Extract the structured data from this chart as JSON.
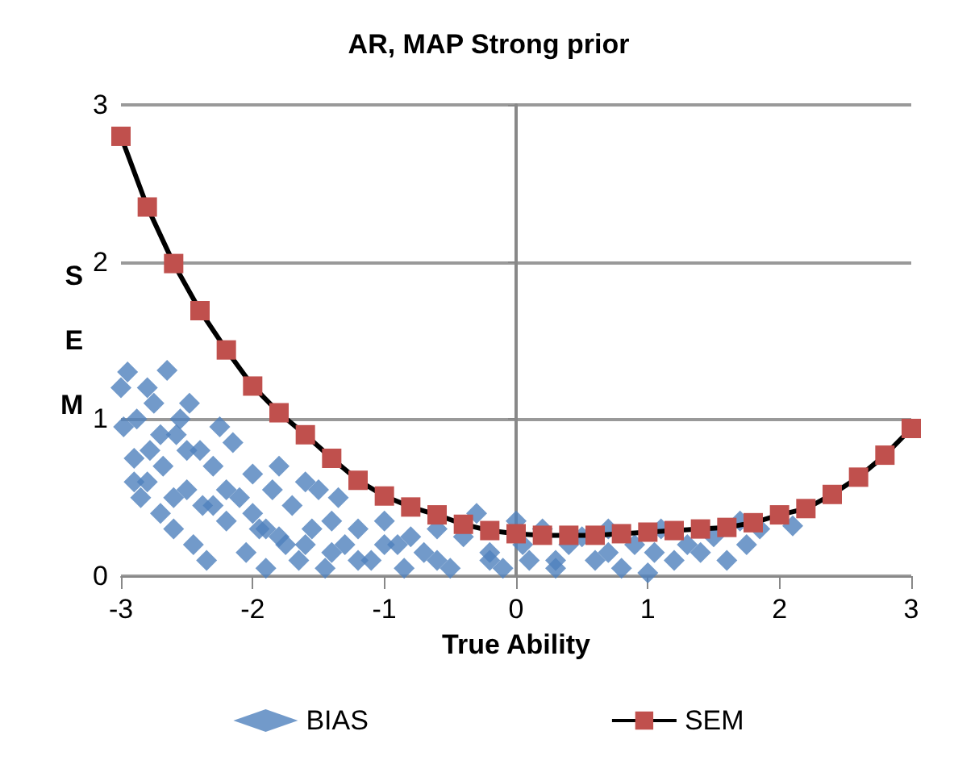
{
  "chart_data": {
    "type": "scatter",
    "title": "AR, MAP Strong prior",
    "xlabel": "True Ability",
    "ylabel": "S\nE\nM",
    "xlim": [
      -3,
      3
    ],
    "ylim": [
      0,
      3
    ],
    "xticks": [
      -3,
      -2,
      -1,
      0,
      1,
      2,
      3
    ],
    "yticks": [
      0,
      1,
      2,
      3
    ],
    "grid": "y",
    "legend": "bottom",
    "series": [
      {
        "name": "BIAS",
        "type": "scatter",
        "marker": "diamond",
        "color": "#4f81bd",
        "x": [
          -3.0,
          -2.98,
          -2.95,
          -2.9,
          -2.88,
          -2.85,
          -2.8,
          -2.78,
          -2.75,
          -2.7,
          -2.68,
          -2.65,
          -2.6,
          -2.58,
          -2.55,
          -2.5,
          -2.48,
          -2.45,
          -2.4,
          -2.38,
          -2.35,
          -2.3,
          -2.25,
          -2.2,
          -2.15,
          -2.1,
          -2.05,
          -2.0,
          -1.95,
          -1.9,
          -1.85,
          -1.8,
          -1.75,
          -1.7,
          -1.65,
          -1.6,
          -1.55,
          -1.5,
          -1.45,
          -1.4,
          -1.35,
          -1.3,
          -1.2,
          -1.1,
          -1.0,
          -0.9,
          -0.85,
          -0.8,
          -0.7,
          -0.6,
          -0.5,
          -0.4,
          -0.3,
          -0.2,
          -0.1,
          0.0,
          0.05,
          0.1,
          0.2,
          0.3,
          0.4,
          0.5,
          0.6,
          0.7,
          0.8,
          0.9,
          1.0,
          1.05,
          1.1,
          1.2,
          1.3,
          1.4,
          1.5,
          1.6,
          1.7,
          1.75,
          1.85,
          2.1,
          -2.9,
          -2.7,
          -2.5,
          -2.2,
          -2.0,
          -1.8,
          -1.6,
          -1.4,
          -1.2,
          -1.0,
          -0.6,
          -0.2,
          0.3,
          0.7,
          -2.8,
          -2.6,
          -2.3,
          -1.9
        ],
        "values": [
          1.2,
          0.95,
          1.3,
          0.6,
          1.0,
          0.5,
          1.2,
          0.8,
          1.1,
          0.4,
          0.7,
          1.31,
          0.3,
          0.9,
          1.0,
          0.55,
          1.1,
          0.2,
          0.8,
          0.45,
          0.1,
          0.7,
          0.95,
          0.35,
          0.85,
          0.5,
          0.15,
          0.65,
          0.3,
          0.05,
          0.55,
          0.7,
          0.2,
          0.45,
          0.1,
          0.6,
          0.3,
          0.55,
          0.05,
          0.35,
          0.5,
          0.2,
          0.3,
          0.1,
          0.35,
          0.2,
          0.05,
          0.25,
          0.15,
          0.3,
          0.05,
          0.25,
          0.4,
          0.15,
          0.05,
          0.35,
          0.2,
          0.1,
          0.3,
          0.05,
          0.2,
          0.25,
          0.1,
          0.3,
          0.05,
          0.2,
          0.02,
          0.15,
          0.3,
          0.1,
          0.2,
          0.15,
          0.25,
          0.1,
          0.35,
          0.2,
          0.3,
          0.32,
          0.75,
          0.9,
          0.8,
          0.55,
          0.4,
          0.25,
          0.2,
          0.15,
          0.1,
          0.2,
          0.1,
          0.1,
          0.1,
          0.15,
          0.6,
          0.5,
          0.45,
          0.3
        ]
      },
      {
        "name": "SEM",
        "type": "line",
        "marker": "square",
        "color": "#c0504d",
        "x": [
          -3,
          -2.8,
          -2.6,
          -2.4,
          -2.2,
          -2,
          -1.8,
          -1.6,
          -1.4,
          -1.2,
          -1,
          -0.8,
          -0.6,
          -0.4,
          -0.2,
          0,
          0.2,
          0.4,
          0.6,
          0.8,
          1,
          1.2,
          1.4,
          1.6,
          1.8,
          2,
          2.2,
          2.4,
          2.6,
          2.8,
          3
        ],
        "values": [
          2.8,
          2.35,
          1.99,
          1.69,
          1.44,
          1.21,
          1.04,
          0.9,
          0.75,
          0.61,
          0.51,
          0.44,
          0.39,
          0.33,
          0.29,
          0.27,
          0.26,
          0.26,
          0.26,
          0.27,
          0.28,
          0.29,
          0.3,
          0.31,
          0.34,
          0.39,
          0.43,
          0.52,
          0.63,
          0.77,
          0.94
        ]
      }
    ]
  }
}
